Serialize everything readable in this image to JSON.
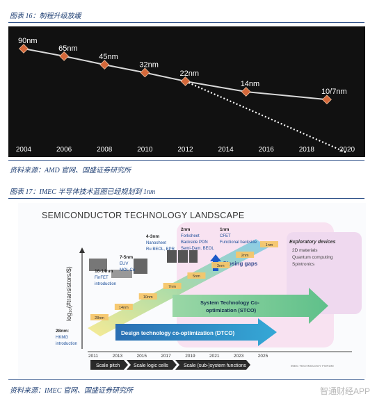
{
  "figure1": {
    "caption": "图表 16：制程升级放缓",
    "source": "资料来源：AMD 官网、国盛证券研究所",
    "colors": {
      "background": "#111111",
      "line": "#d9d9d9",
      "marker": "#d4683a",
      "trend": "#ffffff",
      "axis": "#ffffff"
    },
    "chart_data": {
      "type": "line",
      "title": "",
      "xlabel": "",
      "ylabel": "",
      "x_ticks": [
        "2004",
        "2006",
        "2008",
        "2010",
        "2012",
        "2014",
        "2016",
        "2018",
        "2020"
      ],
      "xlim": [
        2004,
        2020
      ],
      "series": [
        {
          "style": "solid-with-markers",
          "points": [
            {
              "x": 2004,
              "y": 90,
              "label": "90nm"
            },
            {
              "x": 2006,
              "y": 65,
              "label": "65nm"
            },
            {
              "x": 2008,
              "y": 45,
              "label": "45nm"
            },
            {
              "x": 2010,
              "y": 32,
              "label": "32nm"
            },
            {
              "x": 2012,
              "y": 22,
              "label": "22nm"
            },
            {
              "x": 2015,
              "y": 14,
              "label": "14nm"
            },
            {
              "x": 2019,
              "y": 10,
              "label": "10/7nm"
            }
          ]
        },
        {
          "style": "dotted-trend",
          "points": [
            {
              "x": 2012,
              "y": 22
            },
            {
              "x": 2020,
              "y": 1
            }
          ]
        }
      ]
    }
  },
  "figure2": {
    "caption": "图表 17：IMEC 半导体技术蓝图已经规划到 1nm",
    "source": "资料来源：IMEC 官网、国盛证券研究所",
    "chart_data": {
      "type": "diagram",
      "title": "SEMICONDUCTOR TECHNOLOGY LANDSCAPE",
      "ylabel": "log₁₀(#transistors/$)",
      "x_ticks": [
        "2011",
        "2013",
        "2015",
        "2017",
        "2019",
        "2021",
        "2023",
        "2025"
      ],
      "nodes": [
        {
          "x": 2011,
          "label": "28nm"
        },
        {
          "x": 2013,
          "label": "14nm"
        },
        {
          "x": 2015,
          "label": "10nm"
        },
        {
          "x": 2017,
          "label": "7nm"
        },
        {
          "x": 2019,
          "label": "5nm"
        },
        {
          "x": 2021,
          "label": "3nm"
        },
        {
          "x": 2023,
          "label": "2nm"
        },
        {
          "x": 2025,
          "label": "1nm"
        }
      ],
      "milestones": [
        {
          "title": "28nm:",
          "lines": [
            "HKMG",
            "introduction"
          ]
        },
        {
          "title": "16-14nm",
          "lines": [
            "FinFET",
            "introduction"
          ]
        },
        {
          "title": "7-5nm",
          "lines": [
            "EUV",
            "MOL Co"
          ]
        },
        {
          "title": "4-3nm",
          "lines": [
            "Nanosheet",
            "Ru BEOL, BPR"
          ]
        },
        {
          "title": "2nm",
          "lines": [
            "Forksheet",
            "Backside PDN",
            "Semi-Dam. BEOL"
          ]
        },
        {
          "title": "1nm",
          "lines": [
            "CFET",
            "Functional backside"
          ]
        }
      ],
      "closing_gaps": "Closing gaps",
      "exploratory": {
        "title": "Exploratory devices",
        "items": [
          "2D materials",
          "Quantum computing",
          "Spintronics"
        ]
      },
      "stco_label": "System Technology Co-optimization (STCO)",
      "dtco_label": "Design technology co-optimization (DTCO)",
      "phases": [
        "Scale pitch",
        "Scale logic cells",
        "Scale (sub-)system functions"
      ],
      "footer": "IMEC TECHNOLOGY FORUM"
    }
  },
  "watermark": "智通财经APP"
}
